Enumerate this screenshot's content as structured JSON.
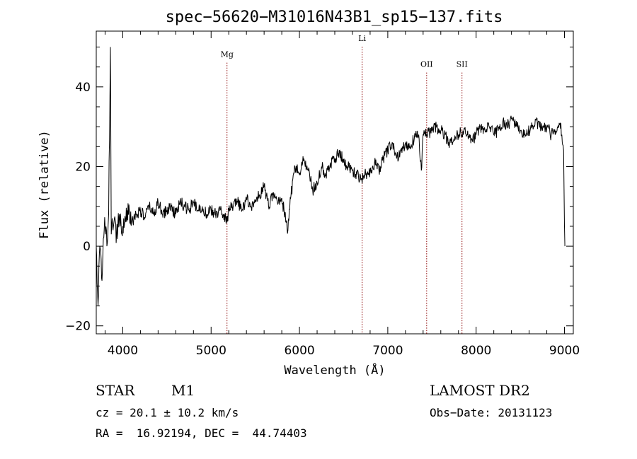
{
  "chart_data": {
    "type": "line",
    "title": "spec−56620−M31016N43B1_sp15−137.fits",
    "xlabel": "Wavelength (Å)",
    "ylabel": "Flux (relative)",
    "xlim": [
      3700,
      9100
    ],
    "ylim": [
      -22,
      54
    ],
    "x_ticks": [
      4000,
      5000,
      6000,
      7000,
      8000,
      9000
    ],
    "x_tick_labels": [
      "4000",
      "5000",
      "6000",
      "7000",
      "8000",
      "9000"
    ],
    "y_ticks": [
      -20,
      0,
      20,
      40
    ],
    "y_tick_labels": [
      "−20",
      "0",
      "20",
      "40"
    ],
    "grid": false,
    "line_color": "#000000",
    "marker_color": "#8b0000",
    "series": [
      {
        "x": [
          3700,
          3720,
          3740,
          3760,
          3780,
          3800,
          3820,
          3840,
          3860,
          3870,
          3880,
          3890,
          3900,
          3930,
          3960,
          4000,
          4050,
          4100,
          4150,
          4200,
          4250,
          4300,
          4350,
          4400,
          4450,
          4500,
          4550,
          4600,
          4650,
          4700,
          4750,
          4800,
          4850,
          4900,
          4950,
          5000,
          5050,
          5100,
          5150,
          5180,
          5200,
          5250,
          5300,
          5350,
          5400,
          5450,
          5500,
          5550,
          5600,
          5650,
          5700,
          5750,
          5800,
          5850,
          5870,
          5900,
          5950,
          6000,
          6050,
          6100,
          6150,
          6200,
          6250,
          6300,
          6350,
          6400,
          6450,
          6500,
          6550,
          6600,
          6650,
          6700,
          6750,
          6800,
          6850,
          6900,
          6950,
          7000,
          7050,
          7100,
          7150,
          7200,
          7250,
          7300,
          7350,
          7380,
          7400,
          7450,
          7500,
          7550,
          7600,
          7650,
          7700,
          7750,
          7800,
          7850,
          7900,
          7950,
          8000,
          8050,
          8100,
          8150,
          8200,
          8250,
          8300,
          8350,
          8400,
          8450,
          8500,
          8550,
          8600,
          8650,
          8700,
          8750,
          8800,
          8850,
          8900,
          8950,
          8970,
          8990,
          9000,
          9005
        ],
        "values": [
          0,
          -15,
          0,
          -8,
          2,
          5,
          0,
          8,
          50,
          3,
          7,
          4,
          6,
          3,
          8,
          5,
          9,
          6,
          8,
          9,
          7,
          10,
          8,
          11,
          8,
          9,
          10,
          8,
          11,
          10,
          9,
          11,
          9,
          10,
          8,
          9,
          8,
          9,
          8,
          6,
          9,
          10,
          11,
          9,
          12,
          10,
          11,
          13,
          15,
          10,
          13,
          11,
          12,
          6,
          4,
          12,
          20,
          18,
          22,
          19,
          14,
          16,
          20,
          18,
          21,
          22,
          24,
          21,
          20,
          19,
          18,
          17,
          18,
          19,
          21,
          19,
          22,
          24,
          26,
          22,
          24,
          26,
          25,
          27,
          28,
          19,
          28,
          28,
          29,
          30,
          29,
          28,
          26,
          27,
          28,
          29,
          28,
          27,
          28,
          30,
          29,
          30,
          28,
          29,
          31,
          30,
          32,
          30,
          29,
          28,
          29,
          30,
          31,
          29,
          30,
          28,
          29,
          31,
          28,
          24,
          5,
          0
        ]
      }
    ],
    "annotations": [
      {
        "label": "Mg",
        "x": 5180,
        "label_y": 47.5
      },
      {
        "label": "Li",
        "x": 6710,
        "label_y": 51.5
      },
      {
        "label": "OII",
        "x": 7440,
        "label_y": 45
      },
      {
        "label": "SII",
        "x": 7840,
        "label_y": 45
      }
    ]
  },
  "info": {
    "object_class": "STAR",
    "subclass": "M1",
    "cz": "cz = 20.1 ± 10.2 km/s",
    "coords": "RA =  16.92194, DEC =  44.74403",
    "survey": "LAMOST DR2",
    "obs_date": "Obs−Date: 20131123"
  }
}
